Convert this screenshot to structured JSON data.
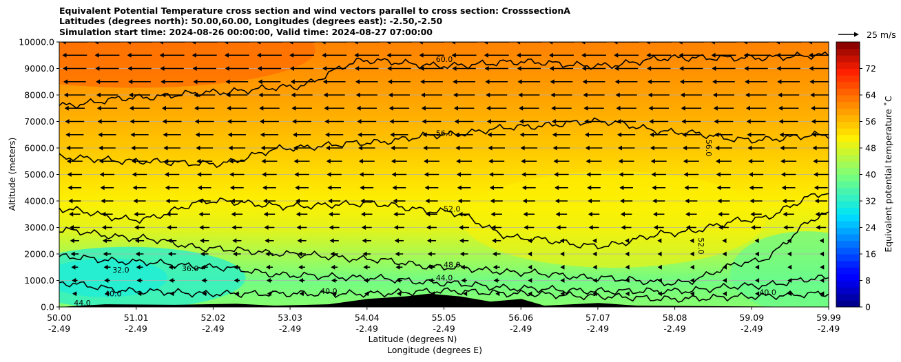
{
  "chart_data": {
    "type": "heatmap",
    "title_lines": [
      "Equivalent Potential Temperature cross section and wind vectors parallel to cross section: CrosssectionA",
      "Latitudes (degrees north): 50.00,60.00, Longitudes (degrees east): -2.50,-2.50",
      "Simulation start time: 2024-08-26 00:00:00, Valid time: 2024-08-27 07:00:00"
    ],
    "xlabel_lines": [
      "Latitude (degrees N)",
      "Longitude (degrees E)"
    ],
    "ylabel": "Altitude (meters)",
    "x_ticks": [
      {
        "lat": "50.00",
        "lon": "-2.49"
      },
      {
        "lat": "51.01",
        "lon": "-2.49"
      },
      {
        "lat": "52.02",
        "lon": "-2.49"
      },
      {
        "lat": "53.03",
        "lon": "-2.49"
      },
      {
        "lat": "54.04",
        "lon": "-2.49"
      },
      {
        "lat": "55.05",
        "lon": "-2.49"
      },
      {
        "lat": "56.06",
        "lon": "-2.49"
      },
      {
        "lat": "57.07",
        "lon": "-2.49"
      },
      {
        "lat": "58.08",
        "lon": "-2.49"
      },
      {
        "lat": "59.09",
        "lon": "-2.49"
      },
      {
        "lat": "59.99",
        "lon": "-2.49"
      }
    ],
    "xlim": [
      50.0,
      59.99
    ],
    "ylim": [
      0,
      10000
    ],
    "y_ticks": [
      "0.0",
      "1000.0",
      "2000.0",
      "3000.0",
      "4000.0",
      "5000.0",
      "6000.0",
      "7000.0",
      "8000.0",
      "9000.0",
      "10000.0"
    ],
    "y_tick_values": [
      0,
      1000,
      2000,
      3000,
      4000,
      5000,
      6000,
      7000,
      8000,
      9000,
      10000
    ],
    "grid": true,
    "colorbar": {
      "label": "Equivalent potential temperature $^\\circ$C",
      "label_text": "Equivalent potential temperature ˚C",
      "ticks": [
        "0",
        "8",
        "16",
        "24",
        "32",
        "40",
        "48",
        "56",
        "64",
        "72"
      ],
      "tick_values": [
        0,
        8,
        16,
        24,
        32,
        40,
        48,
        56,
        64,
        72
      ],
      "range": [
        0,
        80
      ]
    },
    "contour_labels": [
      {
        "text": "60.0",
        "lat": 55.0,
        "alt": 9250
      },
      {
        "text": "56.0",
        "lat": 55.0,
        "alt": 6450
      },
      {
        "text": "56.0",
        "lat": 58.4,
        "alt": 6000,
        "rotated": true
      },
      {
        "text": "52.0",
        "lat": 55.1,
        "alt": 3600
      },
      {
        "text": "52.0",
        "lat": 58.3,
        "alt": 2300,
        "rotated": true
      },
      {
        "text": "36.0",
        "lat": 51.7,
        "alt": 1350
      },
      {
        "text": "40.0",
        "lat": 50.7,
        "alt": 400
      },
      {
        "text": "40.0",
        "lat": 53.5,
        "alt": 500
      },
      {
        "text": "40.0",
        "lat": 59.2,
        "alt": 450
      },
      {
        "text": "44.0",
        "lat": 50.3,
        "alt": 50
      },
      {
        "text": "44.0",
        "lat": 55.0,
        "alt": 1000
      },
      {
        "text": "48.0",
        "lat": 55.1,
        "alt": 1500
      },
      {
        "text": "32.0",
        "lat": 50.8,
        "alt": 1300
      }
    ],
    "wind_key": {
      "label": "25 m/s",
      "speed": 25
    },
    "background_field": [
      {
        "alt": 10000,
        "value": 62
      },
      {
        "alt": 8000,
        "value": 59
      },
      {
        "alt": 6000,
        "value": 55
      },
      {
        "alt": 4000,
        "value": 51
      },
      {
        "alt": 3000,
        "value": 49
      },
      {
        "alt": 2000,
        "value": 44
      },
      {
        "alt": 1000,
        "value": 39
      },
      {
        "alt": 0,
        "value": 41
      }
    ],
    "contour_levels": [
      {
        "value": 60,
        "alt_profile": [
          7600,
          7900,
          8100,
          8300,
          9300,
          9100,
          9250,
          9100,
          9400,
          9400,
          9500
        ]
      },
      {
        "value": 56,
        "alt_profile": [
          5650,
          5500,
          5400,
          6000,
          6200,
          6500,
          6800,
          7000,
          6600,
          6300,
          6500
        ]
      },
      {
        "value": 52,
        "alt_profile": [
          3700,
          3300,
          4000,
          3800,
          3900,
          3600,
          2600,
          2300,
          2800,
          3300,
          4300
        ]
      },
      {
        "value": 48,
        "alt_profile": [
          2900,
          2600,
          2200,
          2000,
          1800,
          1500,
          1300,
          1100,
          900,
          1700,
          3500
        ]
      },
      {
        "value": 44,
        "alt_profile": [
          1900,
          1700,
          1500,
          1200,
          1100,
          900,
          700,
          600,
          600,
          800,
          1100
        ]
      },
      {
        "value": 40,
        "alt_profile": [
          900,
          600,
          500,
          500,
          500,
          600,
          500,
          400,
          300,
          400,
          500
        ]
      }
    ],
    "terrain_profile": [
      {
        "lat": 50.0,
        "alt": 0
      },
      {
        "lat": 50.6,
        "alt": 100
      },
      {
        "lat": 51.5,
        "alt": 80
      },
      {
        "lat": 52.3,
        "alt": 120
      },
      {
        "lat": 52.8,
        "alt": 50
      },
      {
        "lat": 53.5,
        "alt": 100
      },
      {
        "lat": 54.0,
        "alt": 300
      },
      {
        "lat": 54.5,
        "alt": 400
      },
      {
        "lat": 54.8,
        "alt": 500
      },
      {
        "lat": 55.2,
        "alt": 400
      },
      {
        "lat": 55.6,
        "alt": 200
      },
      {
        "lat": 56.0,
        "alt": 300
      },
      {
        "lat": 56.3,
        "alt": 50
      },
      {
        "lat": 57.0,
        "alt": 150
      },
      {
        "lat": 57.5,
        "alt": 50
      },
      {
        "lat": 59.99,
        "alt": 0
      }
    ]
  }
}
